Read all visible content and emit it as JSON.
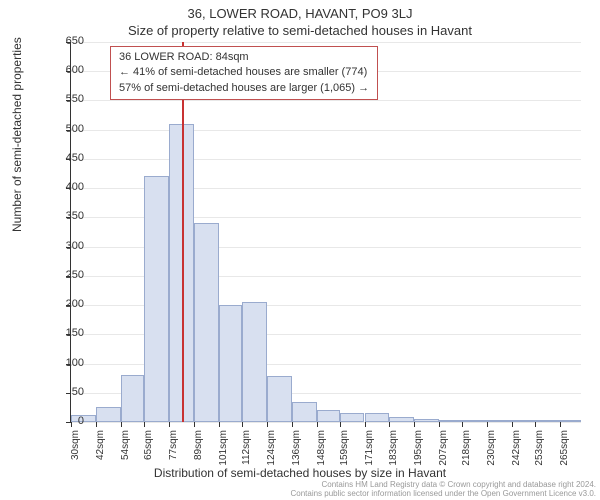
{
  "title": "36, LOWER ROAD, HAVANT, PO9 3LJ",
  "subtitle": "Size of property relative to semi-detached houses in Havant",
  "info_box": {
    "line1": "36 LOWER ROAD: 84sqm",
    "line2": "← 41% of semi-detached houses are smaller (774)",
    "line3": "57% of semi-detached houses are larger (1,065) →"
  },
  "ylabel": "Number of semi-detached properties",
  "xlabel": "Distribution of semi-detached houses by size in Havant",
  "footer_line1": "Contains HM Land Registry data © Crown copyright and database right 2024.",
  "footer_line2": "Contains public sector information licensed under the Open Government Licence v3.0.",
  "chart": {
    "type": "histogram",
    "bar_fill": "#d8e0f0",
    "bar_border": "#9aabce",
    "refline_color": "#c83232",
    "grid_color": "#e8e8e8",
    "axis_color": "#333333",
    "background_color": "#ffffff",
    "ylim": [
      0,
      650
    ],
    "yticks": [
      0,
      50,
      100,
      150,
      200,
      250,
      300,
      350,
      400,
      450,
      500,
      550,
      600,
      650
    ],
    "xtick_labels": [
      "30sqm",
      "42sqm",
      "54sqm",
      "65sqm",
      "77sqm",
      "89sqm",
      "101sqm",
      "112sqm",
      "124sqm",
      "136sqm",
      "148sqm",
      "159sqm",
      "171sqm",
      "183sqm",
      "195sqm",
      "207sqm",
      "218sqm",
      "230sqm",
      "242sqm",
      "253sqm",
      "265sqm"
    ],
    "xtick_positions_sqm": [
      30,
      42,
      54,
      65,
      77,
      89,
      101,
      112,
      124,
      136,
      148,
      159,
      171,
      183,
      195,
      207,
      218,
      230,
      242,
      253,
      265
    ],
    "x_range_sqm": [
      30,
      275
    ],
    "refline_x_sqm": 84,
    "bars": [
      {
        "x_start_sqm": 30,
        "x_end_sqm": 42,
        "count": 12
      },
      {
        "x_start_sqm": 42,
        "x_end_sqm": 54,
        "count": 25
      },
      {
        "x_start_sqm": 54,
        "x_end_sqm": 65,
        "count": 80
      },
      {
        "x_start_sqm": 65,
        "x_end_sqm": 77,
        "count": 420
      },
      {
        "x_start_sqm": 77,
        "x_end_sqm": 89,
        "count": 510
      },
      {
        "x_start_sqm": 89,
        "x_end_sqm": 101,
        "count": 340
      },
      {
        "x_start_sqm": 101,
        "x_end_sqm": 112,
        "count": 200
      },
      {
        "x_start_sqm": 112,
        "x_end_sqm": 124,
        "count": 205
      },
      {
        "x_start_sqm": 124,
        "x_end_sqm": 136,
        "count": 78
      },
      {
        "x_start_sqm": 136,
        "x_end_sqm": 148,
        "count": 35
      },
      {
        "x_start_sqm": 148,
        "x_end_sqm": 159,
        "count": 20
      },
      {
        "x_start_sqm": 159,
        "x_end_sqm": 171,
        "count": 15
      },
      {
        "x_start_sqm": 171,
        "x_end_sqm": 183,
        "count": 15
      },
      {
        "x_start_sqm": 183,
        "x_end_sqm": 195,
        "count": 8
      },
      {
        "x_start_sqm": 195,
        "x_end_sqm": 207,
        "count": 5
      },
      {
        "x_start_sqm": 207,
        "x_end_sqm": 218,
        "count": 3
      },
      {
        "x_start_sqm": 218,
        "x_end_sqm": 230,
        "count": 2
      },
      {
        "x_start_sqm": 230,
        "x_end_sqm": 242,
        "count": 1
      },
      {
        "x_start_sqm": 242,
        "x_end_sqm": 253,
        "count": 1
      },
      {
        "x_start_sqm": 253,
        "x_end_sqm": 265,
        "count": 1
      },
      {
        "x_start_sqm": 265,
        "x_end_sqm": 275,
        "count": 2
      }
    ]
  }
}
